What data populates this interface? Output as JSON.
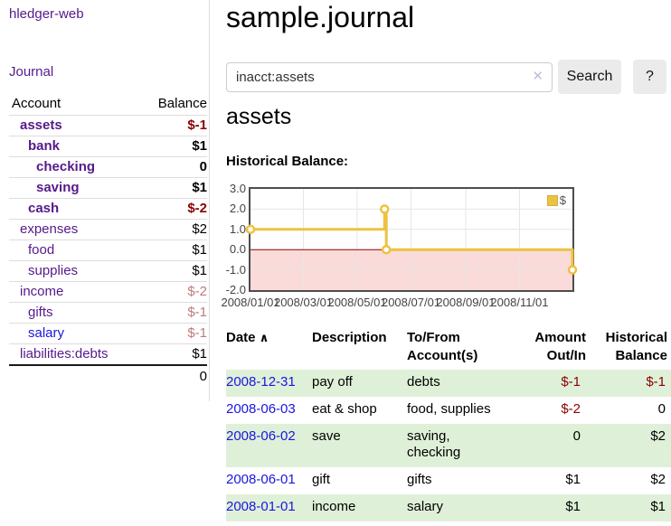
{
  "colors": {
    "link_purple": "#551a8b",
    "link_blue": "#1a16e0",
    "negative_strong": "#8b0000",
    "negative_soft": "#bd7b7b",
    "row_stripe_green": "#dff0d8",
    "chart_line": "#edc240",
    "chart_negative_fill": "#fbdada",
    "chart_zero_line": "#8b0000",
    "chart_grid": "#e6e6e6",
    "chart_border": "#4d4d4d"
  },
  "app": {
    "brand": "hledger-web"
  },
  "sidebar": {
    "journal_link": "Journal",
    "accounts_table": {
      "headers": {
        "account": "Account",
        "balance": "Balance"
      },
      "rows": [
        {
          "name": "assets",
          "balance": "$-1"
        },
        {
          "name": "bank",
          "balance": "$1"
        },
        {
          "name": "checking",
          "balance": "0"
        },
        {
          "name": "saving",
          "balance": "$1"
        },
        {
          "name": "cash",
          "balance": "$-2"
        },
        {
          "name": "expenses",
          "balance": "$2"
        },
        {
          "name": "food",
          "balance": "$1"
        },
        {
          "name": "supplies",
          "balance": "$1"
        },
        {
          "name": "income",
          "balance": "$-2"
        },
        {
          "name": "gifts",
          "balance": "$-1"
        },
        {
          "name": "salary",
          "balance": "$-1"
        },
        {
          "name": "liabilities:debts",
          "balance": "$1"
        }
      ],
      "total": "0"
    }
  },
  "main": {
    "title": "sample.journal",
    "search": {
      "value": "inacct:assets",
      "clear_icon": "✕",
      "button": "Search",
      "help_button": "?"
    },
    "account_heading": "assets",
    "chart": {
      "heading": "Historical Balance:",
      "chart_data": {
        "type": "line",
        "step": true,
        "title": "Historical Balance",
        "legend": [
          {
            "label": "$",
            "color": "#edc240"
          }
        ],
        "legend_position": "top-right",
        "series": [
          {
            "name": "$",
            "points": [
              [
                "2008-01-01",
                1
              ],
              [
                "2008-06-01",
                2
              ],
              [
                "2008-06-03",
                0
              ],
              [
                "2008-12-31",
                -1
              ]
            ]
          }
        ],
        "x_ticks": [
          "2008/01/01",
          "2008/03/01",
          "2008/05/01",
          "2008/07/01",
          "2008/09/01",
          "2008/11/01"
        ],
        "y_ticks": [
          "3.0",
          "2.0",
          "1.0",
          "0.0",
          "-1.0",
          "-2.0"
        ],
        "xlim": [
          "2008-01-01",
          "2008-12-31"
        ],
        "ylim": [
          -2,
          3
        ],
        "grid": true,
        "negative_region_shaded": true
      }
    },
    "table": {
      "headers": {
        "date": "Date",
        "sort_icon": "∧",
        "description": "Description",
        "tofrom_line1": "To/From",
        "tofrom_line2": "Account(s)",
        "amount_line1": "Amount",
        "amount_line2": "Out/In",
        "balance_line1": "Historical",
        "balance_line2": "Balance"
      },
      "rows": [
        {
          "date": "2008-12-31",
          "description": "pay off",
          "accounts": "debts",
          "amount": "$-1",
          "balance": "$-1"
        },
        {
          "date": "2008-06-03",
          "description": "eat & shop",
          "accounts": "food, supplies",
          "amount": "$-2",
          "balance": "0"
        },
        {
          "date": "2008-06-02",
          "description": "save",
          "accounts": "saving, checking",
          "amount": "0",
          "balance": "$2"
        },
        {
          "date": "2008-06-01",
          "description": "gift",
          "accounts": "gifts",
          "amount": "$1",
          "balance": "$2"
        },
        {
          "date": "2008-01-01",
          "description": "income",
          "accounts": "salary",
          "amount": "$1",
          "balance": "$1"
        }
      ]
    }
  }
}
